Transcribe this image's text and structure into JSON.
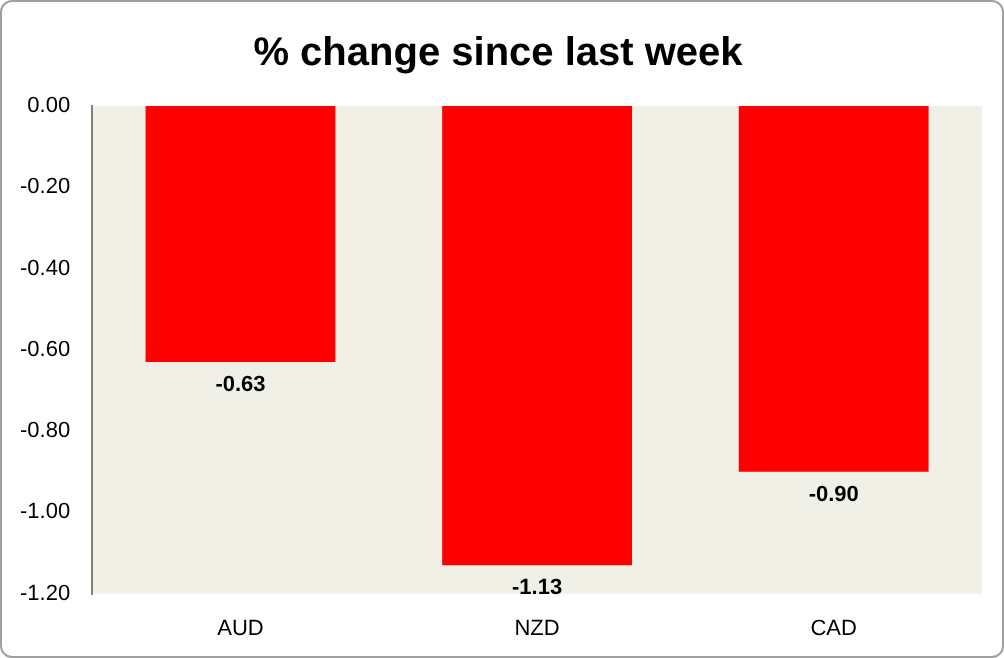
{
  "chart_data": {
    "type": "bar",
    "title": "% change since last week",
    "categories": [
      "AUD",
      "NZD",
      "CAD"
    ],
    "values": [
      -0.63,
      -1.13,
      -0.9
    ],
    "color": "#ff0000",
    "ylim": [
      -1.2,
      0
    ],
    "yticks": [
      {
        "value": 0,
        "label": "0.00"
      },
      {
        "value": -0.2,
        "label": "-0.20"
      },
      {
        "value": -0.4,
        "label": "-0.40"
      },
      {
        "value": -0.6,
        "label": "-0.60"
      },
      {
        "value": -0.8,
        "label": "-0.80"
      },
      {
        "value": -1.0,
        "label": "-1.00"
      },
      {
        "value": -1.2,
        "label": "-1.20"
      }
    ],
    "value_labels": [
      "-0.63",
      "-1.13",
      "-0.90"
    ],
    "grid": false,
    "legend": false
  }
}
